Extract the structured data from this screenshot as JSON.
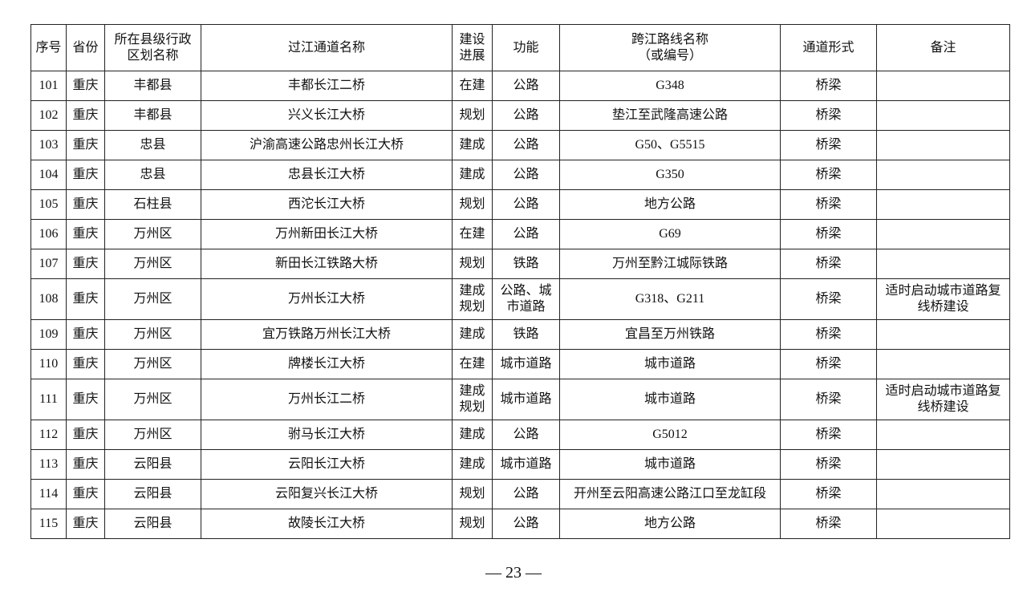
{
  "table": {
    "headers": [
      "序号",
      "省份",
      "所在县级行政\n区划名称",
      "过江通道名称",
      "建设\n进展",
      "功能",
      "跨江路线名称\n（或编号）",
      "通道形式",
      "备注"
    ],
    "rows": [
      [
        "101",
        "重庆",
        "丰都县",
        "丰都长江二桥",
        "在建",
        "公路",
        "G348",
        "桥梁",
        ""
      ],
      [
        "102",
        "重庆",
        "丰都县",
        "兴义长江大桥",
        "规划",
        "公路",
        "垫江至武隆高速公路",
        "桥梁",
        ""
      ],
      [
        "103",
        "重庆",
        "忠县",
        "沪渝高速公路忠州长江大桥",
        "建成",
        "公路",
        "G50、G5515",
        "桥梁",
        ""
      ],
      [
        "104",
        "重庆",
        "忠县",
        "忠县长江大桥",
        "建成",
        "公路",
        "G350",
        "桥梁",
        ""
      ],
      [
        "105",
        "重庆",
        "石柱县",
        "西沱长江大桥",
        "规划",
        "公路",
        "地方公路",
        "桥梁",
        ""
      ],
      [
        "106",
        "重庆",
        "万州区",
        "万州新田长江大桥",
        "在建",
        "公路",
        "G69",
        "桥梁",
        ""
      ],
      [
        "107",
        "重庆",
        "万州区",
        "新田长江铁路大桥",
        "规划",
        "铁路",
        "万州至黔江城际铁路",
        "桥梁",
        ""
      ],
      [
        "108",
        "重庆",
        "万州区",
        "万州长江大桥",
        "建成规划",
        "公路、城市道路",
        "G318、G211",
        "桥梁",
        "适时启动城市道路复线桥建设"
      ],
      [
        "109",
        "重庆",
        "万州区",
        "宜万铁路万州长江大桥",
        "建成",
        "铁路",
        "宜昌至万州铁路",
        "桥梁",
        ""
      ],
      [
        "110",
        "重庆",
        "万州区",
        "牌楼长江大桥",
        "在建",
        "城市道路",
        "城市道路",
        "桥梁",
        ""
      ],
      [
        "111",
        "重庆",
        "万州区",
        "万州长江二桥",
        "建成规划",
        "城市道路",
        "城市道路",
        "桥梁",
        "适时启动城市道路复线桥建设"
      ],
      [
        "112",
        "重庆",
        "万州区",
        "驸马长江大桥",
        "建成",
        "公路",
        "G5012",
        "桥梁",
        ""
      ],
      [
        "113",
        "重庆",
        "云阳县",
        "云阳长江大桥",
        "建成",
        "城市道路",
        "城市道路",
        "桥梁",
        ""
      ],
      [
        "114",
        "重庆",
        "云阳县",
        "云阳复兴长江大桥",
        "规划",
        "公路",
        "开州至云阳高速公路江口至龙缸段",
        "桥梁",
        ""
      ],
      [
        "115",
        "重庆",
        "云阳县",
        "故陵长江大桥",
        "规划",
        "公路",
        "地方公路",
        "桥梁",
        ""
      ]
    ]
  },
  "page_number": "— 23 —"
}
